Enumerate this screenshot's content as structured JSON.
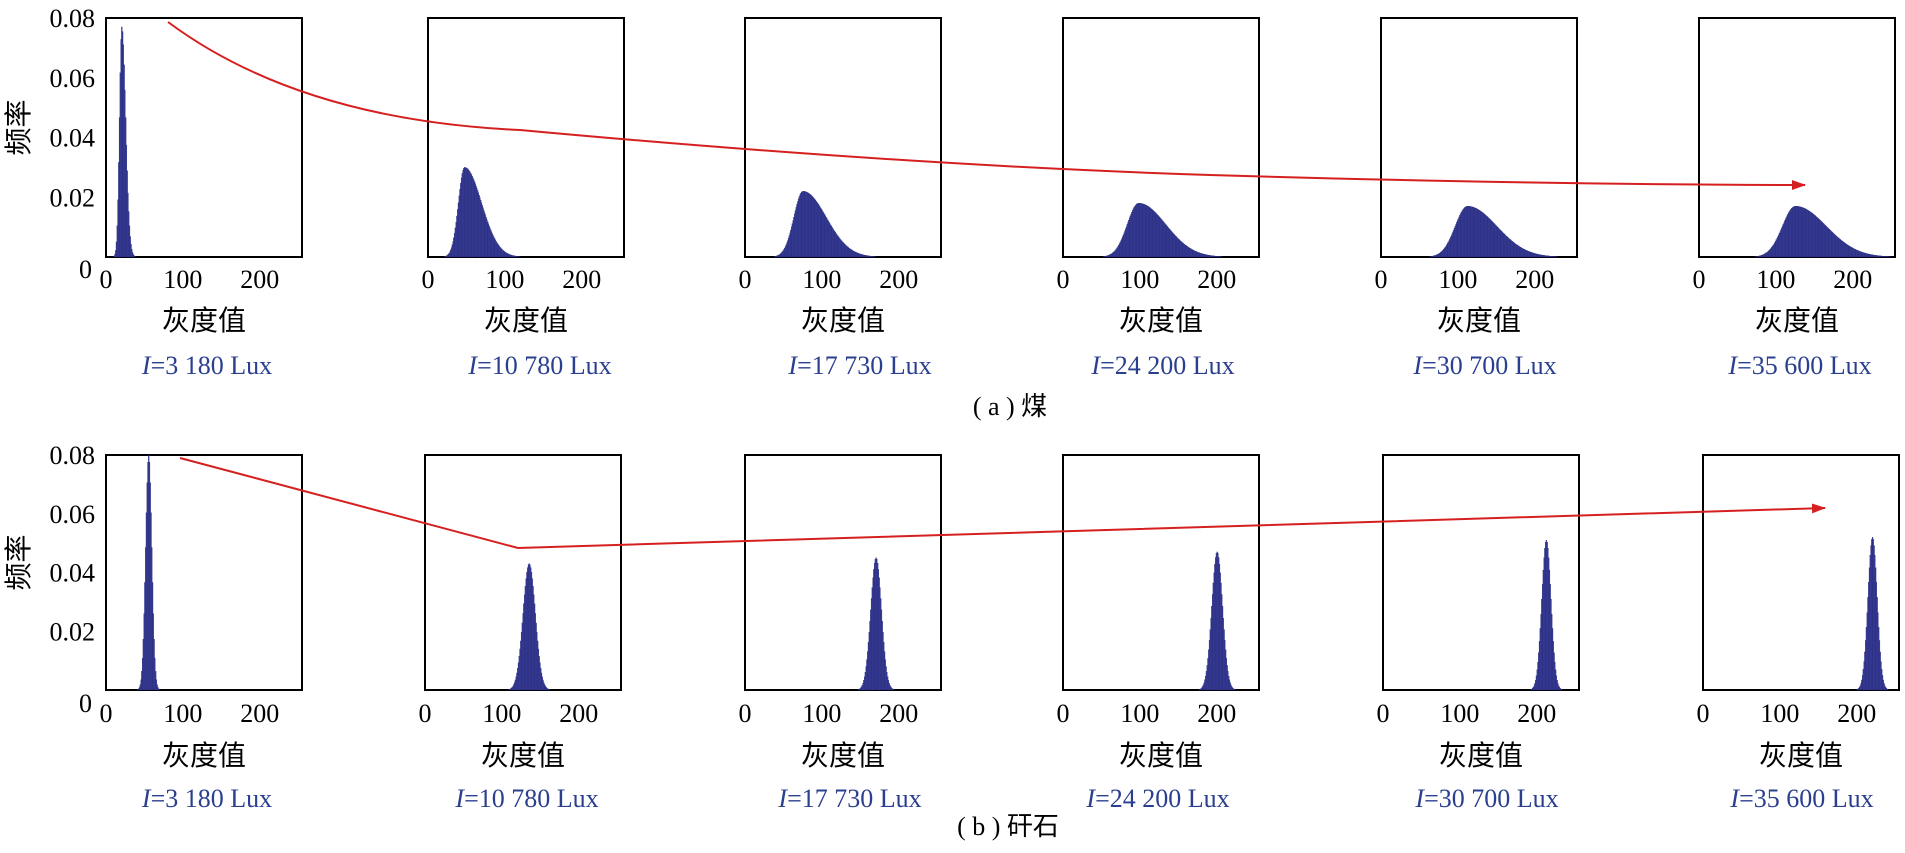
{
  "figure": {
    "panel_labels": [
      "( a ) 煤",
      "( b ) 矸石"
    ]
  },
  "colors": {
    "bar_fill": "#3a3f9a",
    "bar_edge": "#1f2370",
    "arrow": "#d62020",
    "caption_text": "#2a3f8f",
    "axis": "#000000"
  },
  "chart_data": [
    {
      "id": "coal",
      "type": "histogram",
      "panel_label": "( a ) 煤",
      "ylabel": "频率",
      "xlabel": "灰度值",
      "xlim": [
        0,
        255
      ],
      "ylim": [
        0,
        0.08
      ],
      "xticks": [
        0,
        100,
        200
      ],
      "yticks": [
        0,
        0.02,
        0.04,
        0.06,
        0.08
      ],
      "ytick_labels": [
        "0",
        "0.02",
        "0.04",
        "0.06",
        "0.08"
      ],
      "trend_arrow": "decreasing peak frequency with increasing illuminance",
      "subplots": [
        {
          "caption_symbol": "I",
          "caption_value": "=3 180 Lux",
          "illuminance_lux": 3180,
          "peak_gray": 20,
          "peak_freq": 0.077,
          "sigma_left": 3,
          "sigma_right": 5
        },
        {
          "caption_symbol": "I",
          "caption_value": "=10 780 Lux",
          "illuminance_lux": 10780,
          "peak_gray": 47,
          "peak_freq": 0.03,
          "sigma_left": 8,
          "sigma_right": 22
        },
        {
          "caption_symbol": "I",
          "caption_value": "=17 730 Lux",
          "illuminance_lux": 17730,
          "peak_gray": 75,
          "peak_freq": 0.022,
          "sigma_left": 12,
          "sigma_right": 30
        },
        {
          "caption_symbol": "I",
          "caption_value": "=24 200 Lux",
          "illuminance_lux": 24200,
          "peak_gray": 98,
          "peak_freq": 0.018,
          "sigma_left": 15,
          "sigma_right": 35
        },
        {
          "caption_symbol": "I",
          "caption_value": "=30 700 Lux",
          "illuminance_lux": 30700,
          "peak_gray": 112,
          "peak_freq": 0.017,
          "sigma_left": 16,
          "sigma_right": 38
        },
        {
          "caption_symbol": "I",
          "caption_value": "=35 600 Lux",
          "illuminance_lux": 35600,
          "peak_gray": 125,
          "peak_freq": 0.017,
          "sigma_left": 17,
          "sigma_right": 40
        }
      ]
    },
    {
      "id": "gangue",
      "type": "histogram",
      "panel_label": "( b ) 矸石",
      "ylabel": "频率",
      "xlabel": "灰度值",
      "xlim": [
        0,
        255
      ],
      "ylim": [
        0,
        0.08
      ],
      "xticks": [
        0,
        100,
        200
      ],
      "yticks": [
        0,
        0.02,
        0.04,
        0.06,
        0.08
      ],
      "ytick_labels": [
        "0",
        "0.02",
        "0.04",
        "0.06",
        "0.08"
      ],
      "trend_arrow": "peak shifts to higher gray values with increasing illuminance",
      "subplots": [
        {
          "caption_symbol": "I",
          "caption_value": "=3 180 Lux",
          "illuminance_lux": 3180,
          "peak_gray": 55,
          "peak_freq": 0.08,
          "sigma_left": 4,
          "sigma_right": 4
        },
        {
          "caption_symbol": "I",
          "caption_value": "=10 780 Lux",
          "illuminance_lux": 10780,
          "peak_gray": 135,
          "peak_freq": 0.043,
          "sigma_left": 8,
          "sigma_right": 8
        },
        {
          "caption_symbol": "I",
          "caption_value": "=17 730 Lux",
          "illuminance_lux": 17730,
          "peak_gray": 170,
          "peak_freq": 0.045,
          "sigma_left": 7,
          "sigma_right": 7
        },
        {
          "caption_symbol": "I",
          "caption_value": "=24 200 Lux",
          "illuminance_lux": 24200,
          "peak_gray": 200,
          "peak_freq": 0.047,
          "sigma_left": 7,
          "sigma_right": 7
        },
        {
          "caption_symbol": "I",
          "caption_value": "=30 700 Lux",
          "illuminance_lux": 30700,
          "peak_gray": 212,
          "peak_freq": 0.051,
          "sigma_left": 6,
          "sigma_right": 6
        },
        {
          "caption_symbol": "I",
          "caption_value": "=35 600 Lux",
          "illuminance_lux": 35600,
          "peak_gray": 220,
          "peak_freq": 0.052,
          "sigma_left": 6,
          "sigma_right": 6
        }
      ]
    }
  ]
}
